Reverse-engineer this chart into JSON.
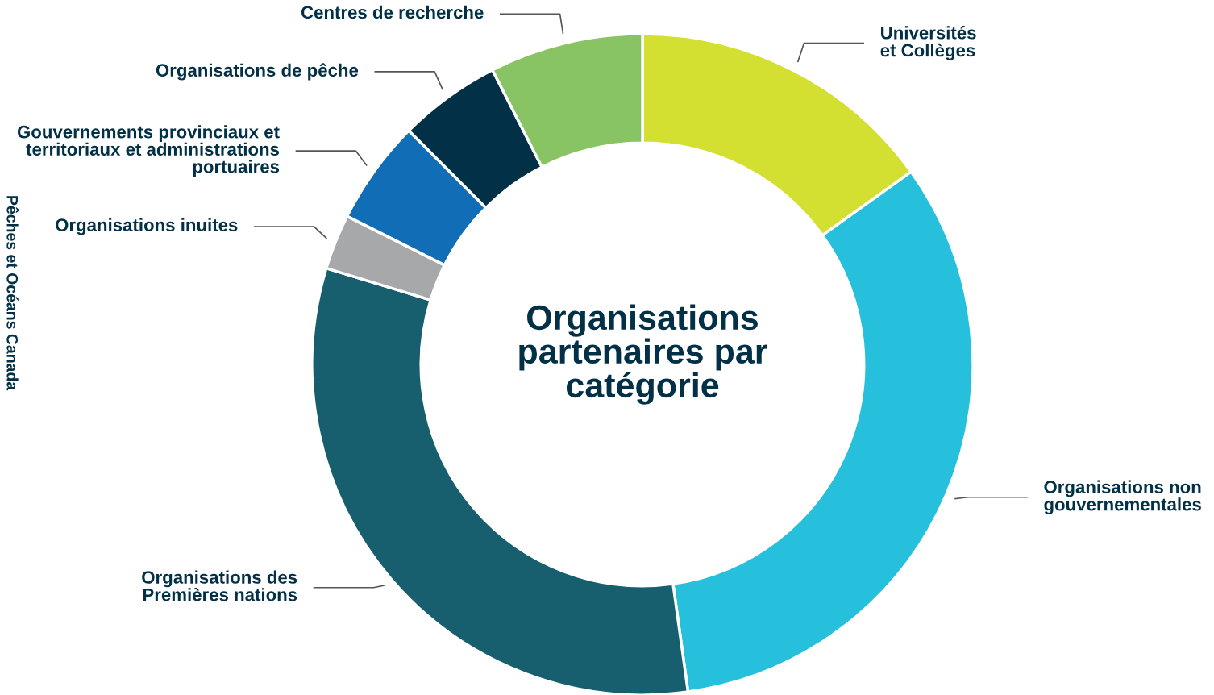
{
  "chart_data": {
    "type": "donut",
    "title": "Organisations\npartenaires par\ncatégorie",
    "categories": [
      "Universités\net Collèges",
      "Organisations non\ngouvernementales",
      "Organisations des\nPremières nations",
      "Organisations inuites",
      "Gouvernements provinciaux et\nterritoriaux et administrations\nportuaires",
      "Organisations de pêche",
      "Centres de recherche"
    ],
    "values": [
      15.1,
      32.7,
      31.9,
      2.7,
      5.1,
      5.0,
      7.5
    ],
    "colors": [
      "#d4e031",
      "#26bfdc",
      "#175f6e",
      "#a7a8aa",
      "#116db5",
      "#023047",
      "#89c464"
    ],
    "annotations": [
      "Pêches et Océans Canada"
    ],
    "legend": false
  }
}
